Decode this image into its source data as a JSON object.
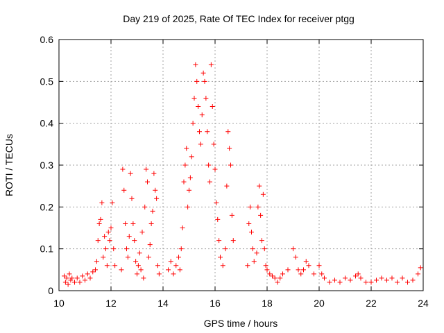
{
  "chart_data": {
    "type": "scatter",
    "title": "Day 219 of 2025, Rate Of TEC Index for receiver ptgg",
    "xlabel": "GPS time / hours",
    "ylabel": "ROTI / TECUs",
    "xlim": [
      10,
      24
    ],
    "ylim": [
      0,
      0.6
    ],
    "x_ticks": [
      10,
      12,
      14,
      16,
      18,
      20,
      22,
      24
    ],
    "x_tick_labels": [
      "10",
      "12",
      "14",
      "16",
      "18",
      "20",
      "22",
      "24"
    ],
    "y_ticks": [
      0,
      0.1,
      0.2,
      0.3,
      0.4,
      0.5,
      0.6
    ],
    "y_tick_labels": [
      "0",
      "0.1",
      "0.2",
      "0.3",
      "0.4",
      "0.5",
      "0.6"
    ],
    "grid": true,
    "marker": "plus",
    "marker_color": "#ff0000",
    "series": [
      {
        "name": "ROTI",
        "points": [
          [
            10.2,
            0.035
          ],
          [
            10.25,
            0.02
          ],
          [
            10.3,
            0.03
          ],
          [
            10.35,
            0.015
          ],
          [
            10.4,
            0.04
          ],
          [
            10.45,
            0.025
          ],
          [
            10.5,
            0.03
          ],
          [
            10.6,
            0.02
          ],
          [
            10.7,
            0.03
          ],
          [
            10.8,
            0.02
          ],
          [
            10.9,
            0.035
          ],
          [
            11.0,
            0.025
          ],
          [
            11.1,
            0.04
          ],
          [
            11.2,
            0.03
          ],
          [
            11.3,
            0.045
          ],
          [
            11.4,
            0.05
          ],
          [
            11.45,
            0.07
          ],
          [
            11.5,
            0.12
          ],
          [
            11.55,
            0.16
          ],
          [
            11.6,
            0.17
          ],
          [
            11.65,
            0.21
          ],
          [
            11.7,
            0.08
          ],
          [
            11.75,
            0.13
          ],
          [
            11.8,
            0.1
          ],
          [
            11.85,
            0.06
          ],
          [
            11.9,
            0.14
          ],
          [
            11.95,
            0.12
          ],
          [
            12.0,
            0.15
          ],
          [
            12.05,
            0.21
          ],
          [
            12.1,
            0.1
          ],
          [
            12.15,
            0.06
          ],
          [
            12.4,
            0.05
          ],
          [
            12.45,
            0.29
          ],
          [
            12.5,
            0.24
          ],
          [
            12.55,
            0.16
          ],
          [
            12.6,
            0.1
          ],
          [
            12.65,
            0.08
          ],
          [
            12.7,
            0.13
          ],
          [
            12.75,
            0.28
          ],
          [
            12.8,
            0.22
          ],
          [
            12.85,
            0.16
          ],
          [
            12.9,
            0.12
          ],
          [
            12.95,
            0.07
          ],
          [
            13.0,
            0.04
          ],
          [
            13.05,
            0.06
          ],
          [
            13.1,
            0.09
          ],
          [
            13.15,
            0.05
          ],
          [
            13.2,
            0.14
          ],
          [
            13.25,
            0.03
          ],
          [
            13.3,
            0.2
          ],
          [
            13.35,
            0.29
          ],
          [
            13.4,
            0.26
          ],
          [
            13.45,
            0.08
          ],
          [
            13.5,
            0.11
          ],
          [
            13.55,
            0.16
          ],
          [
            13.6,
            0.19
          ],
          [
            13.65,
            0.28
          ],
          [
            13.7,
            0.24
          ],
          [
            13.75,
            0.22
          ],
          [
            13.8,
            0.06
          ],
          [
            13.85,
            0.04
          ],
          [
            14.2,
            0.05
          ],
          [
            14.3,
            0.07
          ],
          [
            14.4,
            0.04
          ],
          [
            14.5,
            0.06
          ],
          [
            14.6,
            0.08
          ],
          [
            14.65,
            0.05
          ],
          [
            14.7,
            0.1
          ],
          [
            14.75,
            0.15
          ],
          [
            14.8,
            0.26
          ],
          [
            14.85,
            0.3
          ],
          [
            14.9,
            0.34
          ],
          [
            14.95,
            0.2
          ],
          [
            15.0,
            0.24
          ],
          [
            15.05,
            0.27
          ],
          [
            15.1,
            0.32
          ],
          [
            15.15,
            0.4
          ],
          [
            15.2,
            0.46
          ],
          [
            15.25,
            0.54
          ],
          [
            15.3,
            0.5
          ],
          [
            15.35,
            0.44
          ],
          [
            15.4,
            0.38
          ],
          [
            15.45,
            0.35
          ],
          [
            15.5,
            0.42
          ],
          [
            15.55,
            0.52
          ],
          [
            15.6,
            0.5
          ],
          [
            15.65,
            0.46
          ],
          [
            15.7,
            0.38
          ],
          [
            15.75,
            0.3
          ],
          [
            15.8,
            0.26
          ],
          [
            15.85,
            0.54
          ],
          [
            15.9,
            0.44
          ],
          [
            15.95,
            0.35
          ],
          [
            16.0,
            0.29
          ],
          [
            16.05,
            0.21
          ],
          [
            16.1,
            0.17
          ],
          [
            16.15,
            0.12
          ],
          [
            16.2,
            0.08
          ],
          [
            16.3,
            0.06
          ],
          [
            16.4,
            0.1
          ],
          [
            16.45,
            0.25
          ],
          [
            16.5,
            0.38
          ],
          [
            16.55,
            0.34
          ],
          [
            16.6,
            0.3
          ],
          [
            16.65,
            0.18
          ],
          [
            16.7,
            0.12
          ],
          [
            17.25,
            0.06
          ],
          [
            17.3,
            0.16
          ],
          [
            17.35,
            0.2
          ],
          [
            17.4,
            0.14
          ],
          [
            17.45,
            0.1
          ],
          [
            17.5,
            0.07
          ],
          [
            17.6,
            0.09
          ],
          [
            17.65,
            0.2
          ],
          [
            17.7,
            0.25
          ],
          [
            17.75,
            0.18
          ],
          [
            17.8,
            0.12
          ],
          [
            17.85,
            0.23
          ],
          [
            17.9,
            0.1
          ],
          [
            17.95,
            0.06
          ],
          [
            18.0,
            0.05
          ],
          [
            18.1,
            0.04
          ],
          [
            18.2,
            0.035
          ],
          [
            18.3,
            0.03
          ],
          [
            18.4,
            0.02
          ],
          [
            18.5,
            0.03
          ],
          [
            18.6,
            0.04
          ],
          [
            18.8,
            0.05
          ],
          [
            19.0,
            0.1
          ],
          [
            19.1,
            0.08
          ],
          [
            19.2,
            0.05
          ],
          [
            19.3,
            0.04
          ],
          [
            19.4,
            0.05
          ],
          [
            19.5,
            0.07
          ],
          [
            19.6,
            0.06
          ],
          [
            19.8,
            0.04
          ],
          [
            20.0,
            0.06
          ],
          [
            20.1,
            0.04
          ],
          [
            20.2,
            0.03
          ],
          [
            20.4,
            0.02
          ],
          [
            20.6,
            0.025
          ],
          [
            20.8,
            0.02
          ],
          [
            21.0,
            0.03
          ],
          [
            21.2,
            0.025
          ],
          [
            21.4,
            0.035
          ],
          [
            21.5,
            0.04
          ],
          [
            21.6,
            0.03
          ],
          [
            21.8,
            0.02
          ],
          [
            22.0,
            0.02
          ],
          [
            22.2,
            0.025
          ],
          [
            22.4,
            0.03
          ],
          [
            22.6,
            0.025
          ],
          [
            22.8,
            0.03
          ],
          [
            23.0,
            0.02
          ],
          [
            23.2,
            0.03
          ],
          [
            23.4,
            0.02
          ],
          [
            23.6,
            0.025
          ],
          [
            23.8,
            0.04
          ],
          [
            23.9,
            0.055
          ]
        ]
      }
    ]
  }
}
